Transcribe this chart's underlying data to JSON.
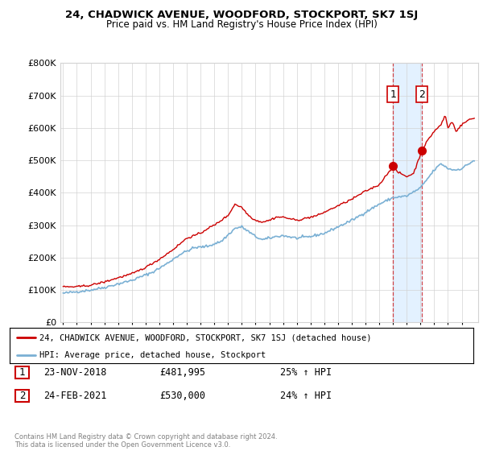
{
  "title": "24, CHADWICK AVENUE, WOODFORD, STOCKPORT, SK7 1SJ",
  "subtitle": "Price paid vs. HM Land Registry's House Price Index (HPI)",
  "legend_line1": "24, CHADWICK AVENUE, WOODFORD, STOCKPORT, SK7 1SJ (detached house)",
  "legend_line2": "HPI: Average price, detached house, Stockport",
  "sale1_date": "23-NOV-2018",
  "sale1_price": "£481,995",
  "sale1_hpi": "25% ↑ HPI",
  "sale2_date": "24-FEB-2021",
  "sale2_price": "£530,000",
  "sale2_hpi": "24% ↑ HPI",
  "footer": "Contains HM Land Registry data © Crown copyright and database right 2024.\nThis data is licensed under the Open Government Licence v3.0.",
  "house_color": "#cc0000",
  "hpi_color": "#7ab0d4",
  "highlight_bg": "#ddeeff",
  "sale1_x": 2019.0,
  "sale2_x": 2021.1,
  "sale1_y": 481995,
  "sale2_y": 530000,
  "hatch_start": 2024.0,
  "xlim_left": 1994.8,
  "xlim_right": 2025.2,
  "ylim": [
    0,
    800000
  ],
  "yticks": [
    0,
    100000,
    200000,
    300000,
    400000,
    500000,
    600000,
    700000,
    800000
  ]
}
